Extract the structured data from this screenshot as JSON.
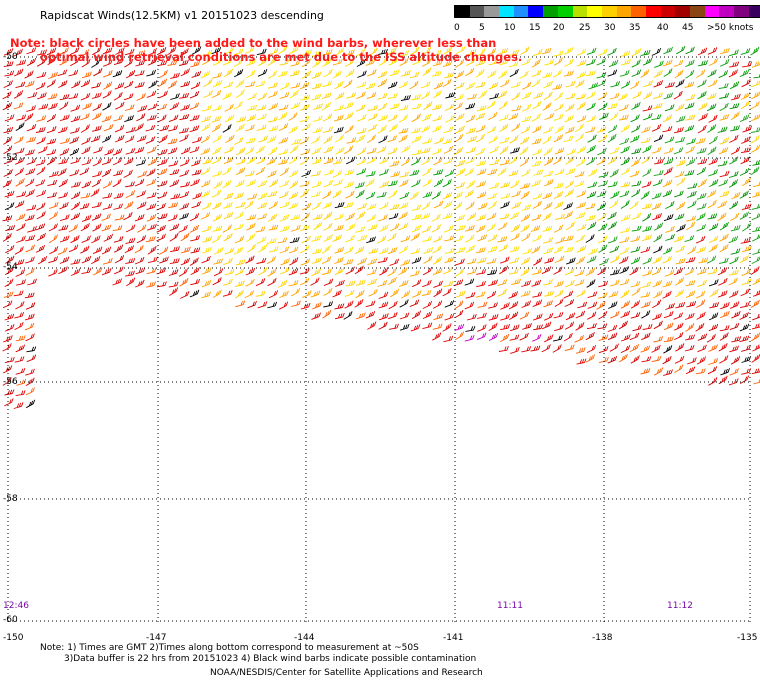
{
  "title": "Rapidscat Winds(12.5KM) v1 20151023 descending",
  "note": {
    "line1": "Note: black circles have been added to the wind barbs, wherever less than",
    "line2": "optimal wind retrieval conditions are met due to the ISS altitude changes."
  },
  "legend": {
    "unit_label": ">50 knots",
    "labels": [
      "0",
      "5",
      "10",
      "15",
      "20",
      "25",
      "30",
      "35",
      "40",
      "45"
    ],
    "colors": [
      "#000000",
      "#555555",
      "#999999",
      "#00e5ff",
      "#1e90ff",
      "#0000ff",
      "#00a000",
      "#00d000",
      "#b8e000",
      "#ffff00",
      "#ffd000",
      "#ffa500",
      "#ff6000",
      "#ff0000",
      "#cc0000",
      "#a00000",
      "#8b4513",
      "#ff00ff",
      "#c000c0",
      "#800080",
      "#3a0060"
    ]
  },
  "axes": {
    "lat_labels": [
      "-50",
      "-52",
      "-54",
      "-56",
      "-58",
      "-60"
    ],
    "lon_labels": [
      "-150",
      "-147",
      "-144",
      "-141",
      "-138",
      "-135"
    ]
  },
  "times": [
    "12:46",
    "11:11",
    "11:12"
  ],
  "footnote": {
    "line1": "Note: 1) Times are GMT 2)Times along bottom correspond to measurement at ~50S",
    "line2": "3)Data buffer is 22 hrs from 20151023 4) Black wind barbs indicate possible contamination"
  },
  "credit": "NOAA/NESDIS/Center for Satellite Applications and Research"
}
